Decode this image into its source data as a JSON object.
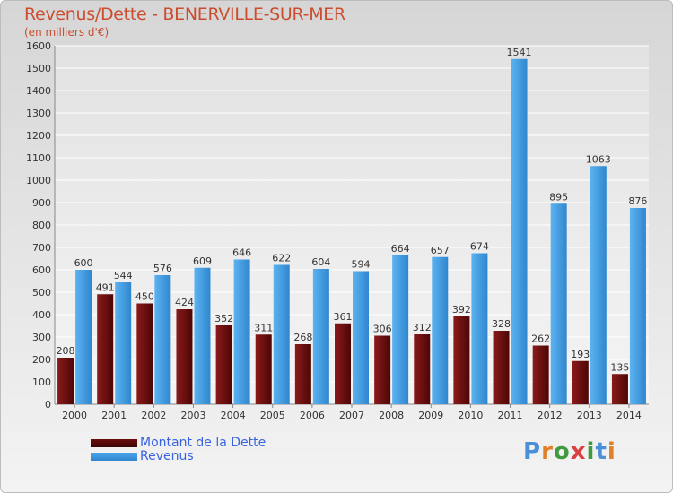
{
  "title": "Revenus/Dette - BENERVILLE-SUR-MER",
  "subtitle": "(en milliers d'€)",
  "logo": "Proxiti",
  "colors": {
    "dette": "#6d0e0e",
    "revenus": "#4aa3e8",
    "title": "#cc4c2e",
    "legend_text": "#3a63e0"
  },
  "chart_data": {
    "type": "bar",
    "categories": [
      "2000",
      "2001",
      "2002",
      "2003",
      "2004",
      "2005",
      "2006",
      "2007",
      "2008",
      "2009",
      "2010",
      "2011",
      "2012",
      "2013",
      "2014"
    ],
    "series": [
      {
        "name": "Montant de la Dette",
        "values": [
          208,
          491,
          450,
          424,
          352,
          311,
          268,
          361,
          306,
          312,
          392,
          328,
          262,
          193,
          135
        ]
      },
      {
        "name": "Revenus",
        "values": [
          600,
          544,
          576,
          609,
          646,
          622,
          604,
          594,
          664,
          657,
          674,
          1541,
          895,
          1063,
          876
        ]
      }
    ],
    "data_labels": {
      "dette": [
        "208",
        "491",
        "450",
        "424",
        "352",
        "311",
        "268",
        "361",
        "306",
        "312",
        "392",
        "328",
        "262",
        "193",
        "135"
      ],
      "revenus": [
        "600",
        "544",
        "576",
        "609",
        "646",
        "622",
        "604",
        "594",
        "664",
        "657",
        "674",
        "1541",
        "895",
        "1063",
        "876"
      ]
    },
    "ylim": [
      0,
      1600
    ],
    "yticks": [
      0,
      100,
      200,
      300,
      400,
      500,
      600,
      700,
      800,
      900,
      1000,
      1100,
      1200,
      1300,
      1400,
      1500,
      1600
    ],
    "grid": true,
    "legend_position": "bottom-left"
  }
}
